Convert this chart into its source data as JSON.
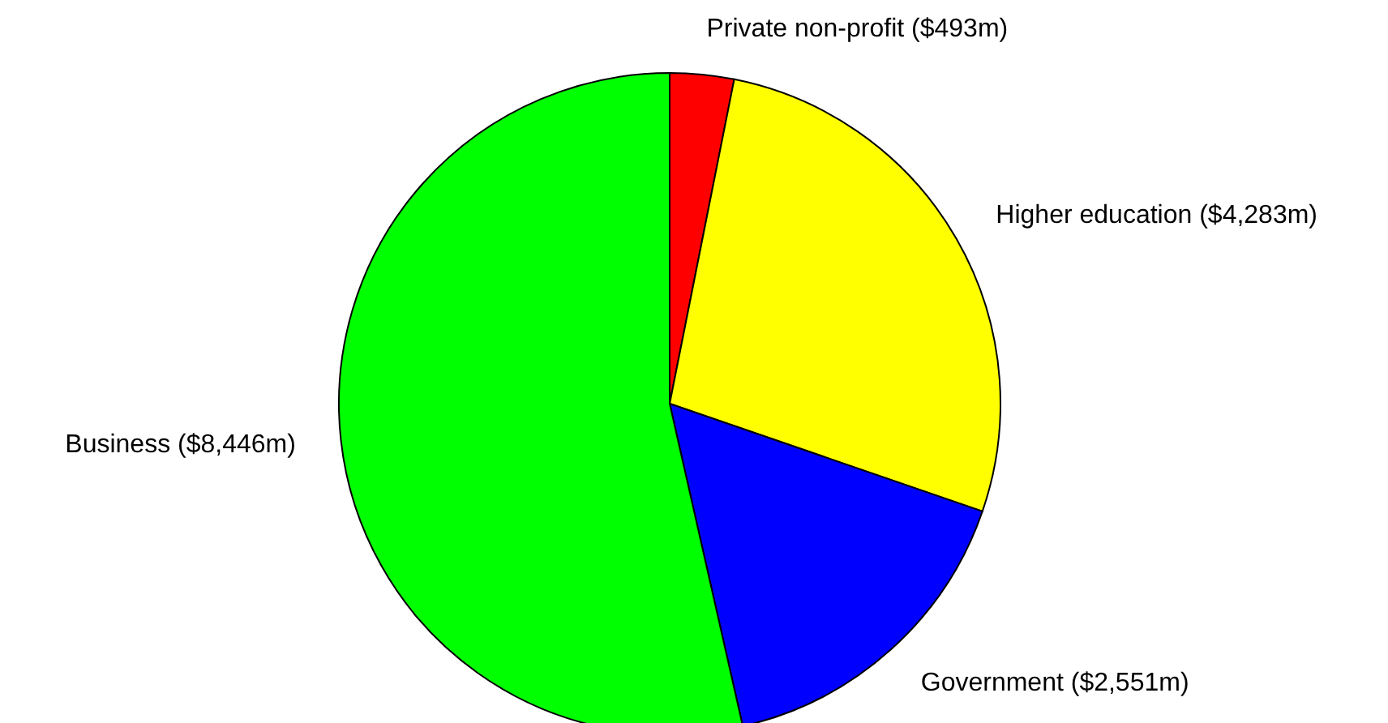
{
  "chart_data": {
    "type": "pie",
    "categories": [
      "Private non-profit ($493m)",
      "Higher education ($4,283m)",
      "Government ($2,551m)",
      "Business ($8,446m)"
    ],
    "values": [
      493,
      4283,
      2551,
      8446
    ],
    "colors": [
      "#ff0000",
      "#ffff00",
      "#0000ff",
      "#00ff00"
    ]
  }
}
